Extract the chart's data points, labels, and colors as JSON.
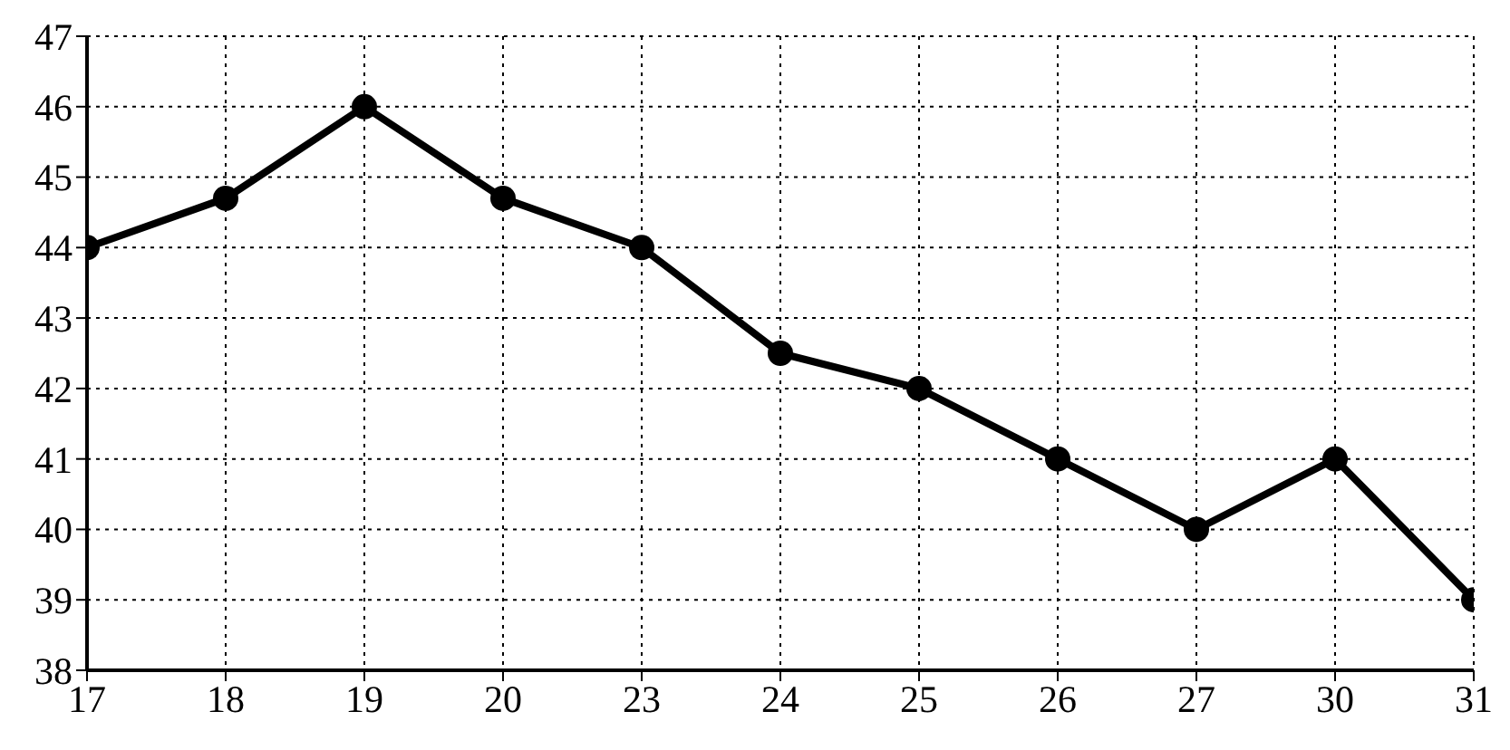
{
  "chart_data": {
    "type": "line",
    "categories": [
      "17",
      "18",
      "19",
      "20",
      "23",
      "24",
      "25",
      "26",
      "27",
      "30",
      "31"
    ],
    "values": [
      44,
      44.7,
      46,
      44.7,
      44,
      42.5,
      42,
      41,
      40,
      41,
      39
    ],
    "color": "#000000",
    "ylim": [
      38,
      47
    ],
    "yticks": [
      38,
      39,
      40,
      41,
      42,
      43,
      44,
      45,
      46,
      47
    ],
    "grid": true,
    "marker": "circle",
    "line_style": "solid"
  }
}
